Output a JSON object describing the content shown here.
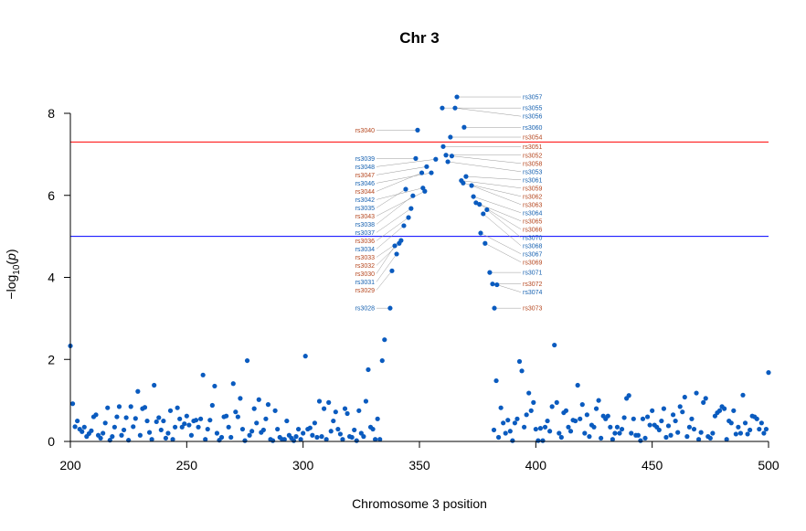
{
  "chart_data": {
    "type": "scatter",
    "title": "Chr 3",
    "xlabel": "Chromosome 3 position",
    "ylabel_prefix": "−log",
    "ylabel_sub": "10",
    "ylabel_var": "p",
    "xlim": [
      200,
      500
    ],
    "ylim": [
      0,
      8
    ],
    "xticks": [
      200,
      250,
      300,
      350,
      400,
      450,
      500
    ],
    "yticks": [
      0,
      2,
      4,
      6,
      8
    ],
    "grid": false,
    "point_color": "#0A5BBF",
    "label_colors": {
      "blue": "#1560B0",
      "red": "#B5461E"
    },
    "thresholds": [
      {
        "value": 7.3,
        "color": "#FF0000"
      },
      {
        "value": 5,
        "color": "#0000FF"
      }
    ],
    "labeled_points": [
      {
        "label": "rs3057",
        "x": 366.1,
        "y": 8.4,
        "c": "blue"
      },
      {
        "label": "rs3055",
        "x": 359.8,
        "y": 8.13,
        "c": "blue"
      },
      {
        "label": "rs3056",
        "x": 365.3,
        "y": 8.13,
        "c": "blue"
      },
      {
        "label": "rs3040",
        "x": 349.2,
        "y": 7.59,
        "c": "red"
      },
      {
        "label": "rs3060",
        "x": 369.2,
        "y": 7.66,
        "c": "blue"
      },
      {
        "label": "rs3054",
        "x": 363.3,
        "y": 7.42,
        "c": "red"
      },
      {
        "label": "rs3051",
        "x": 360.2,
        "y": 7.19,
        "c": "red"
      },
      {
        "label": "rs3052",
        "x": 361.4,
        "y": 6.98,
        "c": "red"
      },
      {
        "label": "rs3058",
        "x": 363.9,
        "y": 6.96,
        "c": "red"
      },
      {
        "label": "rs3039",
        "x": 348.4,
        "y": 6.9,
        "c": "blue"
      },
      {
        "label": "rs3048",
        "x": 357.0,
        "y": 6.88,
        "c": "blue"
      },
      {
        "label": "rs3053",
        "x": 362.2,
        "y": 6.82,
        "c": "blue"
      },
      {
        "label": "rs3047",
        "x": 353.1,
        "y": 6.7,
        "c": "red"
      },
      {
        "label": "rs3046",
        "x": 355.1,
        "y": 6.55,
        "c": "blue"
      },
      {
        "label": "rs3044",
        "x": 351.0,
        "y": 6.55,
        "c": "red"
      },
      {
        "label": "rs3061",
        "x": 370.0,
        "y": 6.46,
        "c": "blue"
      },
      {
        "label": "rs3059",
        "x": 368.0,
        "y": 6.36,
        "c": "red"
      },
      {
        "label": "rs3062",
        "x": 368.8,
        "y": 6.3,
        "c": "red"
      },
      {
        "label": "rs3063",
        "x": 372.4,
        "y": 6.24,
        "c": "red"
      },
      {
        "label": "rs3035",
        "x": 344.1,
        "y": 6.15,
        "c": "blue"
      },
      {
        "label": "rs3042",
        "x": 351.5,
        "y": 6.18,
        "c": "blue"
      },
      {
        "label": "rs3043",
        "x": 352.3,
        "y": 6.1,
        "c": "red"
      },
      {
        "label": "rs3038",
        "x": 347.2,
        "y": 5.99,
        "c": "blue"
      },
      {
        "label": "rs3064",
        "x": 373.2,
        "y": 5.97,
        "c": "blue"
      },
      {
        "label": "rs3065",
        "x": 374.3,
        "y": 5.82,
        "c": "red"
      },
      {
        "label": "rs3066",
        "x": 375.8,
        "y": 5.78,
        "c": "red"
      },
      {
        "label": "rs3070",
        "x": 379.0,
        "y": 5.65,
        "c": "blue"
      },
      {
        "label": "rs3068",
        "x": 377.4,
        "y": 5.55,
        "c": "blue"
      },
      {
        "label": "rs3037",
        "x": 346.4,
        "y": 5.68,
        "c": "blue"
      },
      {
        "label": "rs3036",
        "x": 345.3,
        "y": 5.46,
        "c": "red"
      },
      {
        "label": "rs3034",
        "x": 343.3,
        "y": 5.26,
        "c": "blue"
      },
      {
        "label": "rs3067",
        "x": 376.3,
        "y": 5.08,
        "c": "blue"
      },
      {
        "label": "rs3033",
        "x": 342.1,
        "y": 4.9,
        "c": "red"
      },
      {
        "label": "rs3032",
        "x": 341.3,
        "y": 4.83,
        "c": "red"
      },
      {
        "label": "rs3030",
        "x": 339.4,
        "y": 4.77,
        "c": "red"
      },
      {
        "label": "rs3069",
        "x": 378.2,
        "y": 4.83,
        "c": "red"
      },
      {
        "label": "rs3031",
        "x": 340.2,
        "y": 4.57,
        "c": "blue"
      },
      {
        "label": "rs3029",
        "x": 338.2,
        "y": 4.16,
        "c": "red"
      },
      {
        "label": "rs3071",
        "x": 380.2,
        "y": 4.12,
        "c": "blue"
      },
      {
        "label": "rs3072",
        "x": 381.4,
        "y": 3.84,
        "c": "red"
      },
      {
        "label": "rs3074",
        "x": 383.3,
        "y": 3.82,
        "c": "blue"
      },
      {
        "label": "rs3028",
        "x": 337.4,
        "y": 3.25,
        "c": "blue"
      },
      {
        "label": "rs3073",
        "x": 382.2,
        "y": 3.25,
        "c": "red"
      }
    ],
    "points": [
      [
        200,
        2.33
      ],
      [
        201,
        0.92
      ],
      [
        202,
        0.36
      ],
      [
        203,
        0.5
      ],
      [
        204,
        0.3
      ],
      [
        205,
        0.24
      ],
      [
        206,
        0.35
      ],
      [
        207,
        0.12
      ],
      [
        208,
        0.19
      ],
      [
        209,
        0.26
      ],
      [
        210,
        0.6
      ],
      [
        211,
        0.65
      ],
      [
        212,
        0.15
      ],
      [
        213,
        0.08
      ],
      [
        214,
        0.2
      ],
      [
        215,
        0.45
      ],
      [
        216,
        0.82
      ],
      [
        217,
        0.03
      ],
      [
        218,
        0.12
      ],
      [
        219,
        0.35
      ],
      [
        220,
        0.6
      ],
      [
        221,
        0.85
      ],
      [
        222,
        0.15
      ],
      [
        223,
        0.28
      ],
      [
        224,
        0.58
      ],
      [
        225,
        0.03
      ],
      [
        226,
        0.85
      ],
      [
        227,
        0.36
      ],
      [
        228,
        0.56
      ],
      [
        229,
        1.22
      ],
      [
        230,
        0.15
      ],
      [
        231,
        0.8
      ],
      [
        232,
        0.83
      ],
      [
        233,
        0.5
      ],
      [
        234,
        0.22
      ],
      [
        235,
        0.05
      ],
      [
        236,
        1.37
      ],
      [
        237,
        0.48
      ],
      [
        238,
        0.58
      ],
      [
        239,
        0.28
      ],
      [
        240,
        0.5
      ],
      [
        241,
        0.08
      ],
      [
        242,
        0.2
      ],
      [
        243,
        0.75
      ],
      [
        244,
        0.05
      ],
      [
        245,
        0.35
      ],
      [
        246,
        0.82
      ],
      [
        247,
        0.55
      ],
      [
        248,
        0.35
      ],
      [
        249,
        0.43
      ],
      [
        250,
        0.62
      ],
      [
        251,
        0.4
      ],
      [
        252,
        0.15
      ],
      [
        253,
        0.5
      ],
      [
        254,
        0.52
      ],
      [
        255,
        0.35
      ],
      [
        256,
        0.55
      ],
      [
        257,
        1.62
      ],
      [
        258,
        0.05
      ],
      [
        259,
        0.3
      ],
      [
        260,
        0.52
      ],
      [
        261,
        0.88
      ],
      [
        262,
        1.35
      ],
      [
        263,
        0.2
      ],
      [
        264,
        0.03
      ],
      [
        265,
        0.1
      ],
      [
        266,
        0.6
      ],
      [
        267,
        0.62
      ],
      [
        268,
        0.35
      ],
      [
        269,
        0.1
      ],
      [
        270,
        1.41
      ],
      [
        271,
        0.72
      ],
      [
        272,
        0.6
      ],
      [
        273,
        1.05
      ],
      [
        274,
        0.3
      ],
      [
        275,
        0.02
      ],
      [
        276,
        1.97
      ],
      [
        277,
        0.15
      ],
      [
        278,
        0.25
      ],
      [
        279,
        0.8
      ],
      [
        280,
        0.45
      ],
      [
        281,
        1.02
      ],
      [
        282,
        0.22
      ],
      [
        283,
        0.28
      ],
      [
        284,
        0.55
      ],
      [
        285,
        0.9
      ],
      [
        286,
        0.05
      ],
      [
        287,
        0.02
      ],
      [
        288,
        0.75
      ],
      [
        289,
        0.3
      ],
      [
        290,
        0.1
      ],
      [
        291,
        0.05
      ],
      [
        292,
        0.05
      ],
      [
        293,
        0.5
      ],
      [
        294,
        0.15
      ],
      [
        295,
        0.08
      ],
      [
        296,
        0.02
      ],
      [
        297,
        0.12
      ],
      [
        298,
        0.3
      ],
      [
        299,
        0.05
      ],
      [
        300,
        0.2
      ],
      [
        301,
        2.08
      ],
      [
        302,
        0.3
      ],
      [
        303,
        0.33
      ],
      [
        304,
        0.15
      ],
      [
        305,
        0.45
      ],
      [
        306,
        0.1
      ],
      [
        307,
        0.98
      ],
      [
        308,
        0.12
      ],
      [
        309,
        0.8
      ],
      [
        310,
        0.05
      ],
      [
        311,
        0.95
      ],
      [
        312,
        0.25
      ],
      [
        313,
        0.5
      ],
      [
        314,
        0.72
      ],
      [
        315,
        0.3
      ],
      [
        316,
        0.18
      ],
      [
        317,
        0.05
      ],
      [
        318,
        0.8
      ],
      [
        319,
        0.68
      ],
      [
        320,
        0.12
      ],
      [
        321,
        0.1
      ],
      [
        322,
        0.28
      ],
      [
        323,
        0.02
      ],
      [
        324,
        0.75
      ],
      [
        325,
        0.2
      ],
      [
        326,
        0.12
      ],
      [
        327,
        0.98
      ],
      [
        328,
        1.75
      ],
      [
        329,
        0.35
      ],
      [
        330,
        0.3
      ],
      [
        331,
        0.05
      ],
      [
        332,
        0.55
      ],
      [
        333,
        0.05
      ],
      [
        334,
        1.97
      ],
      [
        335,
        2.48
      ],
      [
        382,
        0.28
      ],
      [
        383,
        1.48
      ],
      [
        384,
        0.1
      ],
      [
        385,
        0.82
      ],
      [
        386,
        0.45
      ],
      [
        387,
        0.2
      ],
      [
        388,
        0.52
      ],
      [
        389,
        0.25
      ],
      [
        390,
        0.02
      ],
      [
        391,
        0.45
      ],
      [
        392,
        0.55
      ],
      [
        393,
        1.95
      ],
      [
        394,
        1.72
      ],
      [
        395,
        0.35
      ],
      [
        396,
        0.65
      ],
      [
        397,
        1.18
      ],
      [
        398,
        0.75
      ],
      [
        399,
        0.95
      ],
      [
        400,
        0.3
      ],
      [
        401,
        0.02
      ],
      [
        402,
        0.32
      ],
      [
        403,
        0.02
      ],
      [
        404,
        0.35
      ],
      [
        405,
        0.5
      ],
      [
        406,
        0.25
      ],
      [
        407,
        0.85
      ],
      [
        408,
        2.35
      ],
      [
        409,
        0.95
      ],
      [
        410,
        0.2
      ],
      [
        411,
        0.1
      ],
      [
        412,
        0.7
      ],
      [
        413,
        0.75
      ],
      [
        414,
        0.35
      ],
      [
        415,
        0.25
      ],
      [
        416,
        0.52
      ],
      [
        417,
        0.5
      ],
      [
        418,
        1.37
      ],
      [
        419,
        0.55
      ],
      [
        420,
        0.9
      ],
      [
        421,
        0.2
      ],
      [
        422,
        0.65
      ],
      [
        423,
        0.12
      ],
      [
        424,
        0.4
      ],
      [
        425,
        0.35
      ],
      [
        426,
        0.8
      ],
      [
        427,
        1.0
      ],
      [
        428,
        0.08
      ],
      [
        429,
        0.62
      ],
      [
        430,
        0.55
      ],
      [
        431,
        0.62
      ],
      [
        432,
        0.35
      ],
      [
        433,
        0.05
      ],
      [
        434,
        0.2
      ],
      [
        435,
        0.35
      ],
      [
        436,
        0.2
      ],
      [
        437,
        0.3
      ],
      [
        438,
        0.58
      ],
      [
        439,
        1.05
      ],
      [
        440,
        1.12
      ],
      [
        441,
        0.2
      ],
      [
        442,
        0.55
      ],
      [
        443,
        0.15
      ],
      [
        444,
        0.15
      ],
      [
        445,
        0.02
      ],
      [
        446,
        0.55
      ],
      [
        447,
        0.08
      ],
      [
        448,
        0.6
      ],
      [
        449,
        0.4
      ],
      [
        450,
        0.75
      ],
      [
        451,
        0.4
      ],
      [
        452,
        0.35
      ],
      [
        453,
        0.28
      ],
      [
        454,
        0.5
      ],
      [
        455,
        0.8
      ],
      [
        456,
        0.1
      ],
      [
        457,
        0.38
      ],
      [
        458,
        0.15
      ],
      [
        459,
        0.65
      ],
      [
        460,
        0.5
      ],
      [
        461,
        0.22
      ],
      [
        462,
        0.85
      ],
      [
        463,
        0.72
      ],
      [
        464,
        1.08
      ],
      [
        465,
        0.12
      ],
      [
        466,
        0.35
      ],
      [
        467,
        0.55
      ],
      [
        468,
        0.3
      ],
      [
        469,
        1.18
      ],
      [
        470,
        0.05
      ],
      [
        471,
        0.22
      ],
      [
        472,
        0.95
      ],
      [
        473,
        1.05
      ],
      [
        474,
        0.12
      ],
      [
        475,
        0.08
      ],
      [
        476,
        0.2
      ],
      [
        477,
        0.62
      ],
      [
        478,
        0.7
      ],
      [
        479,
        0.75
      ],
      [
        480,
        0.85
      ],
      [
        481,
        0.8
      ],
      [
        482,
        0.05
      ],
      [
        483,
        0.5
      ],
      [
        484,
        0.45
      ],
      [
        485,
        0.75
      ],
      [
        486,
        0.18
      ],
      [
        487,
        0.35
      ],
      [
        488,
        0.2
      ],
      [
        489,
        1.13
      ],
      [
        490,
        0.45
      ],
      [
        491,
        0.18
      ],
      [
        492,
        0.28
      ],
      [
        493,
        0.62
      ],
      [
        494,
        0.6
      ],
      [
        495,
        0.55
      ],
      [
        496,
        0.3
      ],
      [
        497,
        0.45
      ],
      [
        498,
        0.2
      ],
      [
        499,
        0.3
      ],
      [
        500,
        1.68
      ]
    ]
  }
}
